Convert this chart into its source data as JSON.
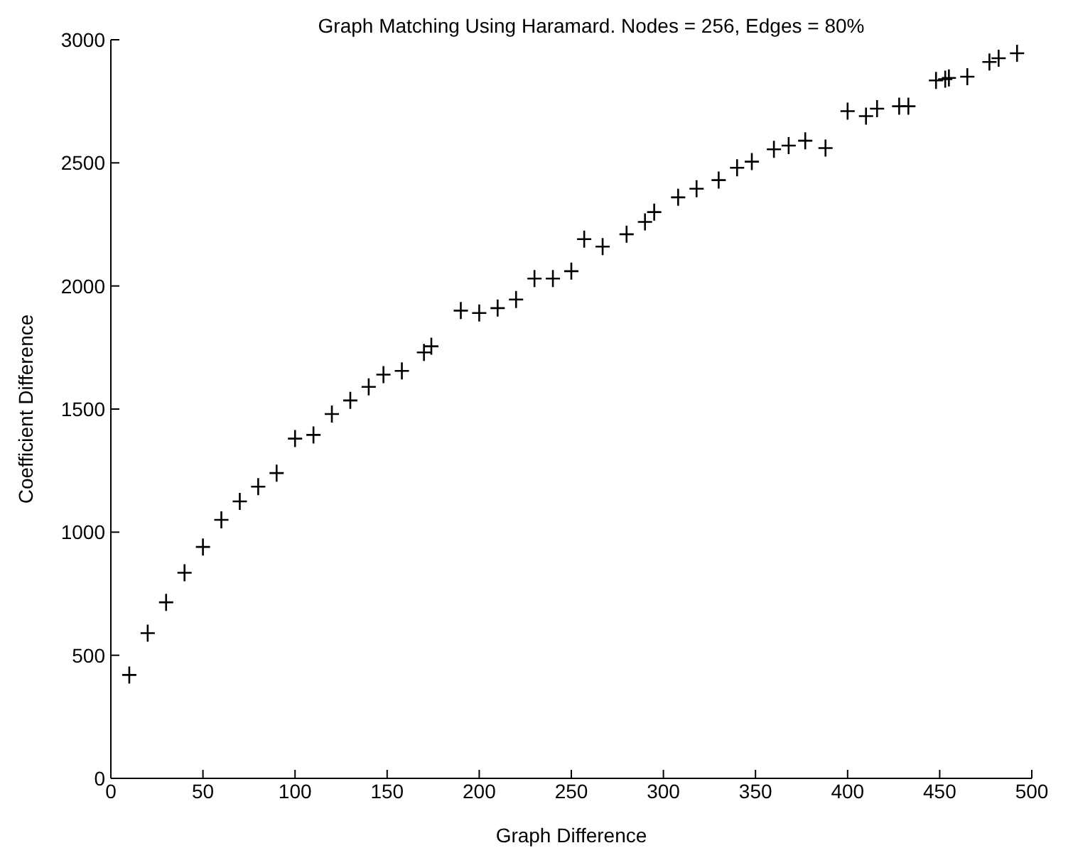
{
  "chart_data": {
    "type": "scatter",
    "title": "Graph Matching Using Haramard. Nodes = 256, Edges = 80%",
    "xlabel": "Graph Difference",
    "ylabel": "Coefficient Difference",
    "x": [
      10,
      20,
      30,
      40,
      50,
      60,
      70,
      80,
      90,
      100,
      110,
      120,
      130,
      140,
      148,
      158,
      170,
      174,
      190,
      200,
      210,
      220,
      230,
      240,
      250,
      257,
      267,
      280,
      290,
      295,
      308,
      318,
      330,
      340,
      348,
      360,
      368,
      377,
      388,
      400,
      410,
      416,
      428,
      433,
      448,
      453,
      455,
      465,
      477,
      482,
      492
    ],
    "values": [
      420,
      590,
      715,
      835,
      940,
      1050,
      1125,
      1185,
      1240,
      1380,
      1395,
      1480,
      1535,
      1590,
      1640,
      1655,
      1730,
      1755,
      1900,
      1890,
      1910,
      1945,
      2030,
      2030,
      2060,
      2190,
      2160,
      2210,
      2260,
      2300,
      2360,
      2395,
      2430,
      2480,
      2505,
      2555,
      2570,
      2590,
      2560,
      2710,
      2690,
      2720,
      2730,
      2730,
      2835,
      2840,
      2845,
      2850,
      2910,
      2925,
      2945
    ],
    "color": "#000000",
    "marker": "cross",
    "xlim": [
      0,
      500
    ],
    "xticks": [
      0,
      50,
      100,
      150,
      200,
      250,
      300,
      350,
      400,
      450,
      500
    ],
    "ylim": [
      0,
      3000
    ],
    "yticks": [
      0,
      500,
      1000,
      1500,
      2000,
      2500,
      3000
    ],
    "grid": false,
    "legend": false
  }
}
